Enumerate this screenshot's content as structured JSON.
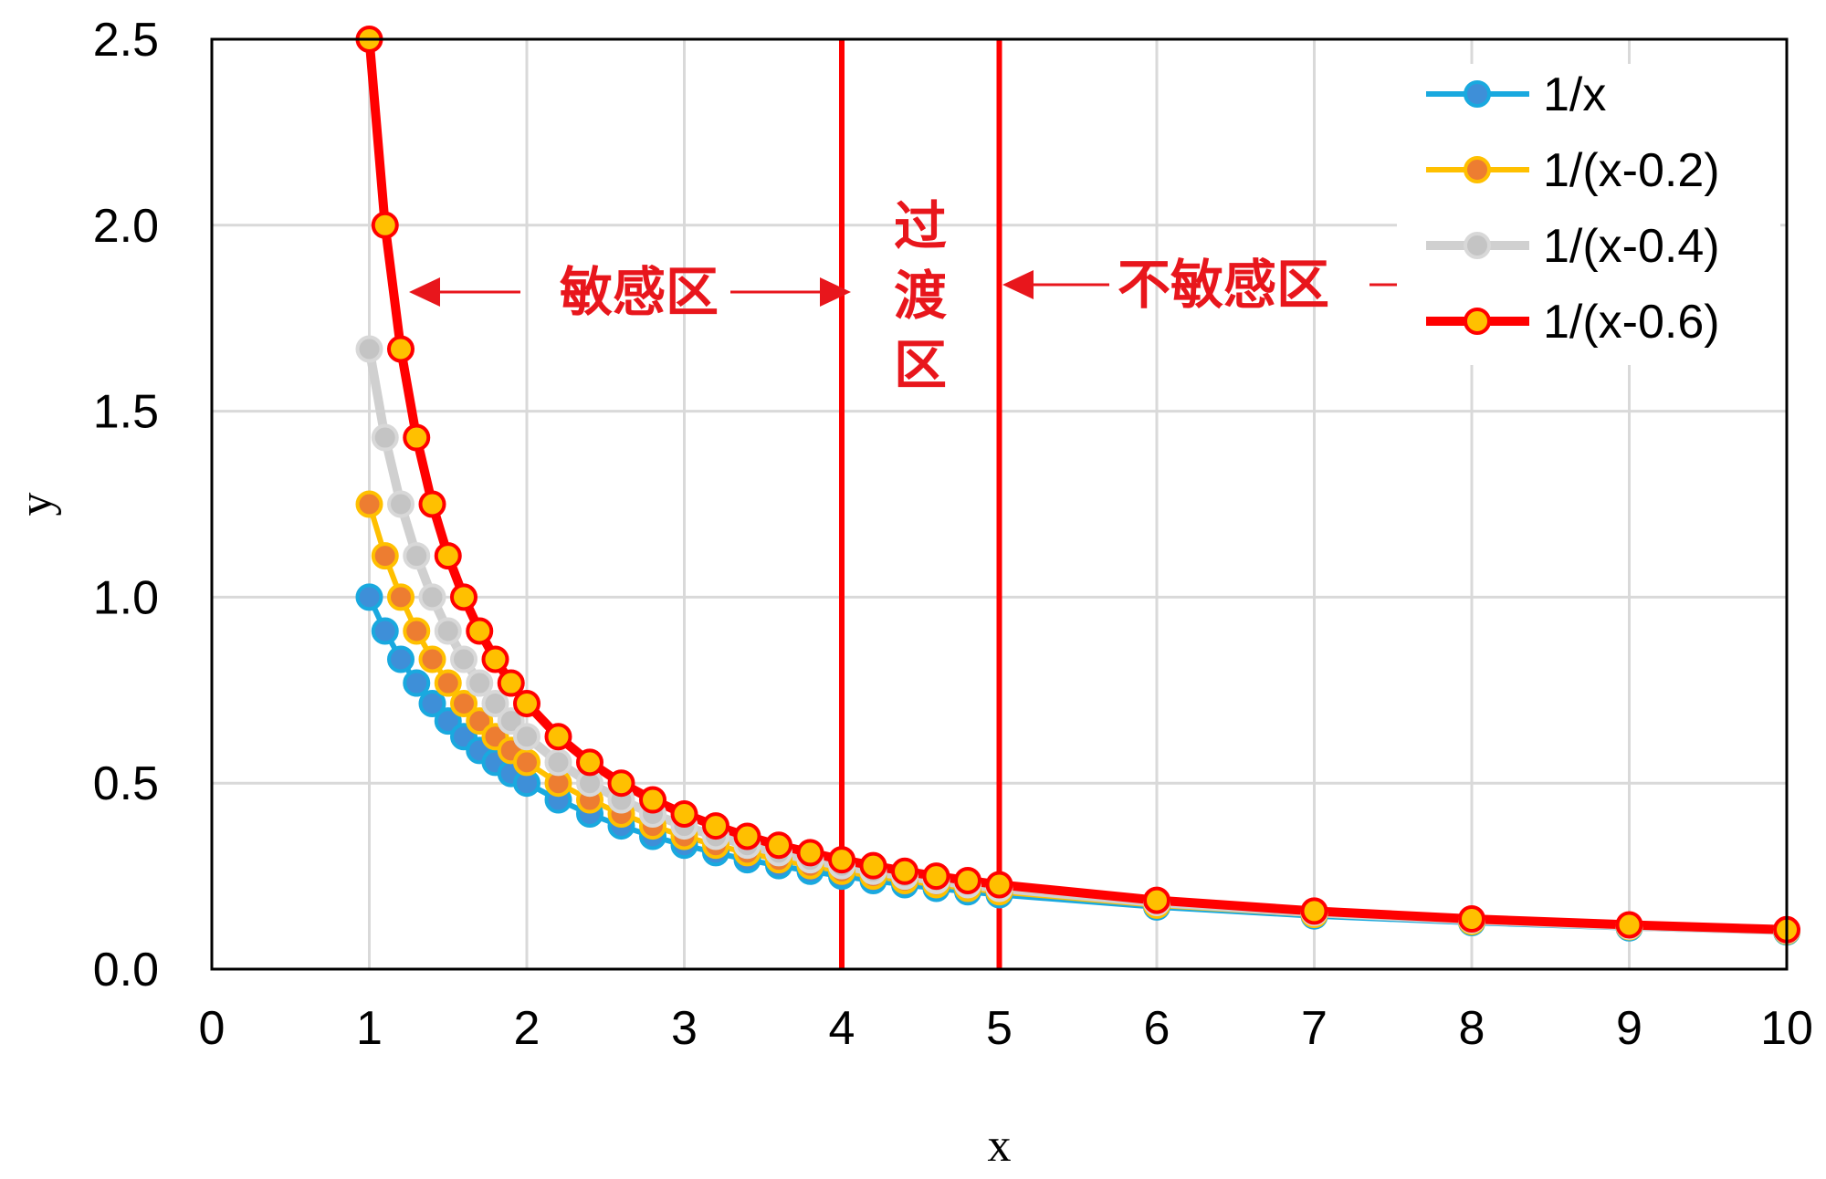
{
  "chart_data": {
    "type": "line",
    "title": "",
    "xlabel": "x",
    "ylabel": "y",
    "xlim": [
      0,
      10
    ],
    "ylim": [
      0,
      2.5
    ],
    "xticks": [
      "0",
      "1",
      "2",
      "3",
      "4",
      "5",
      "6",
      "7",
      "8",
      "9",
      "10"
    ],
    "yticks": [
      "0.0",
      "0.5",
      "1.0",
      "1.5",
      "2.0",
      "2.5"
    ],
    "grid": true,
    "legend_position": "top-right",
    "x": [
      1.0,
      1.1,
      1.2,
      1.3,
      1.4,
      1.5,
      1.6,
      1.7,
      1.8,
      1.9,
      2.0,
      2.2,
      2.4,
      2.6,
      2.8,
      3.0,
      3.2,
      3.4,
      3.6,
      3.8,
      4.0,
      4.2,
      4.4,
      4.6,
      4.8,
      5.0,
      6.0,
      7.0,
      8.0,
      9.0,
      10.0
    ],
    "series": [
      {
        "name": "1/x",
        "line_color": "#19a9df",
        "marker_fill": "#3e8fd8",
        "marker_edge": "#19a9df",
        "values": [
          1.0,
          0.909,
          0.833,
          0.769,
          0.714,
          0.667,
          0.625,
          0.588,
          0.556,
          0.526,
          0.5,
          0.455,
          0.417,
          0.385,
          0.357,
          0.333,
          0.313,
          0.294,
          0.278,
          0.263,
          0.25,
          0.238,
          0.227,
          0.217,
          0.208,
          0.2,
          0.167,
          0.143,
          0.125,
          0.111,
          0.1
        ]
      },
      {
        "name": "1/(x-0.2)",
        "line_color": "#ffc000",
        "marker_fill": "#ed7d31",
        "marker_edge": "#ffc000",
        "values": [
          1.25,
          1.111,
          1.0,
          0.909,
          0.833,
          0.769,
          0.714,
          0.667,
          0.625,
          0.588,
          0.556,
          0.5,
          0.455,
          0.417,
          0.385,
          0.357,
          0.333,
          0.313,
          0.294,
          0.278,
          0.263,
          0.25,
          0.238,
          0.227,
          0.217,
          0.208,
          0.172,
          0.147,
          0.128,
          0.114,
          0.102
        ]
      },
      {
        "name": "1/(x-0.4)",
        "line_color": "#d0d0d0",
        "marker_fill": "#c4c4c4",
        "marker_edge": "#d8d8d8",
        "values": [
          1.667,
          1.429,
          1.25,
          1.111,
          1.0,
          0.909,
          0.833,
          0.769,
          0.714,
          0.667,
          0.625,
          0.556,
          0.5,
          0.455,
          0.417,
          0.385,
          0.357,
          0.333,
          0.313,
          0.294,
          0.278,
          0.263,
          0.25,
          0.238,
          0.227,
          0.217,
          0.179,
          0.152,
          0.132,
          0.116,
          0.104
        ]
      },
      {
        "name": "1/(x-0.6)",
        "line_color": "#ff0000",
        "marker_fill": "#ffc000",
        "marker_edge": "#ff0000",
        "values": [
          2.5,
          2.0,
          1.667,
          1.429,
          1.25,
          1.111,
          1.0,
          0.909,
          0.833,
          0.769,
          0.714,
          0.625,
          0.556,
          0.5,
          0.455,
          0.417,
          0.385,
          0.357,
          0.333,
          0.313,
          0.294,
          0.278,
          0.263,
          0.25,
          0.238,
          0.227,
          0.185,
          0.156,
          0.135,
          0.119,
          0.106
        ]
      }
    ],
    "vertical_lines": [
      {
        "x": 4,
        "color": "#ff0000"
      },
      {
        "x": 5,
        "color": "#ff0000"
      }
    ],
    "annotations": {
      "sensitive": "敏感区",
      "transition": [
        "过",
        "渡",
        "区"
      ],
      "insensitive": "不敏感区",
      "color": "#e8161c"
    }
  }
}
